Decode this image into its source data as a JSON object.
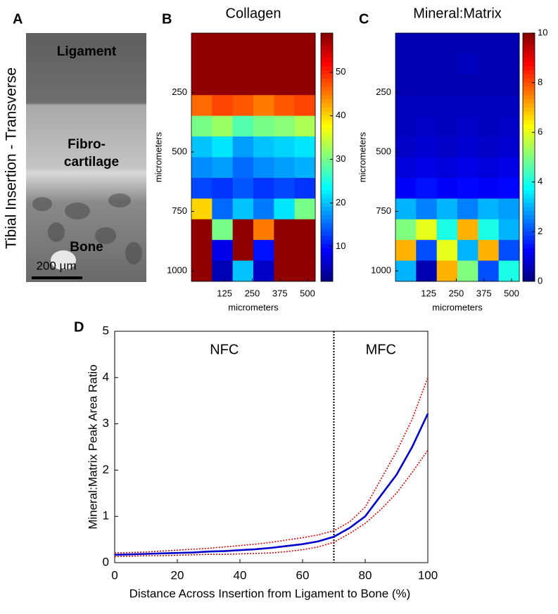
{
  "panel_a": {
    "label": "A",
    "side_label": "Tibial Insertion - Transverse",
    "ligament": "Ligament",
    "fibrocartilage": [
      "Fibro-",
      "cartilage"
    ],
    "bone": "Bone",
    "scale_bar": "200 µm"
  },
  "chart_data": [
    {
      "type": "heatmap",
      "panel_label": "B",
      "title": "Collagen",
      "xlabel": "micrometers",
      "ylabel": "micrometers",
      "xlim": [
        -25,
        535
      ],
      "ylim": [
        0,
        1044
      ],
      "xticks": [
        125,
        250,
        375,
        500
      ],
      "yticks": [
        250,
        500,
        750,
        1000
      ],
      "clim": [
        2,
        59
      ],
      "cticks": [
        10,
        20,
        30,
        40,
        50
      ],
      "colormap": "jet",
      "z": [
        [
          58,
          58,
          58,
          58,
          58,
          58
        ],
        [
          58,
          58,
          58,
          58,
          58,
          58
        ],
        [
          58,
          58,
          58,
          58,
          58,
          58
        ],
        [
          46,
          48,
          47,
          45,
          47,
          48
        ],
        [
          30,
          32,
          28,
          30,
          31,
          33
        ],
        [
          20,
          22,
          18,
          20,
          21,
          22
        ],
        [
          17,
          18,
          15,
          17,
          18,
          19
        ],
        [
          13,
          12,
          14,
          12,
          13,
          12
        ],
        [
          40,
          15,
          20,
          16,
          22,
          30
        ],
        [
          58,
          30,
          58,
          45,
          58,
          58
        ],
        [
          58,
          8,
          58,
          10,
          58,
          58
        ],
        [
          58,
          5,
          20,
          6,
          58,
          58
        ]
      ]
    },
    {
      "type": "heatmap",
      "panel_label": "C",
      "title": "Mineral:Matrix",
      "xlabel": "micrometers",
      "ylabel": "micrometers",
      "xlim": [
        -25,
        535
      ],
      "ylim": [
        0,
        1044
      ],
      "xticks": [
        125,
        250,
        375,
        500
      ],
      "yticks": [
        250,
        500,
        750,
        1000
      ],
      "clim": [
        0,
        10
      ],
      "cticks": [
        0,
        2,
        4,
        6,
        8,
        10
      ],
      "colormap": "jet",
      "z": [
        [
          0.5,
          0.5,
          0.5,
          0.5,
          0.5,
          0.5
        ],
        [
          0.5,
          0.5,
          0.5,
          0.6,
          0.5,
          0.5
        ],
        [
          0.5,
          0.5,
          0.5,
          0.5,
          0.5,
          0.5
        ],
        [
          0.6,
          0.6,
          0.6,
          0.6,
          0.6,
          0.6
        ],
        [
          0.6,
          0.7,
          0.6,
          0.7,
          0.6,
          0.7
        ],
        [
          0.7,
          0.8,
          0.7,
          0.8,
          0.7,
          0.8
        ],
        [
          0.9,
          1,
          0.9,
          1,
          0.9,
          1
        ],
        [
          1.2,
          1.4,
          1.2,
          1.3,
          1.2,
          1.3
        ],
        [
          3,
          2.5,
          3,
          2.5,
          3,
          2.8
        ],
        [
          5,
          6,
          4,
          7,
          4,
          3
        ],
        [
          7,
          2,
          6,
          3,
          7,
          2
        ],
        [
          3,
          0.5,
          7,
          5,
          2,
          4
        ]
      ]
    },
    {
      "type": "line",
      "panel_label": "D",
      "xlabel": "Distance Across Insertion from Ligament to Bone (%)",
      "ylabel": "Mineral:Matrix Peak Area Ratio",
      "xlim": [
        0,
        100
      ],
      "ylim": [
        0,
        5
      ],
      "xticks": [
        0,
        20,
        40,
        60,
        80,
        100
      ],
      "yticks": [
        0,
        1,
        2,
        3,
        4,
        5
      ],
      "divider_x": 70,
      "region_labels": [
        "NFC",
        "MFC"
      ],
      "x": [
        0,
        5,
        10,
        15,
        20,
        25,
        30,
        35,
        40,
        45,
        50,
        55,
        60,
        65,
        70,
        75,
        80,
        85,
        90,
        95,
        100
      ],
      "series": [
        {
          "color": "#0000cc",
          "linestyle": "solid",
          "values": [
            0.17,
            0.18,
            0.19,
            0.2,
            0.21,
            0.22,
            0.24,
            0.25,
            0.27,
            0.29,
            0.32,
            0.36,
            0.4,
            0.46,
            0.56,
            0.75,
            1.0,
            1.45,
            1.9,
            2.5,
            3.22
          ]
        },
        {
          "color": "#dd0000",
          "linestyle": "dotted",
          "values": [
            0.21,
            0.22,
            0.23,
            0.25,
            0.27,
            0.29,
            0.31,
            0.34,
            0.37,
            0.4,
            0.44,
            0.49,
            0.54,
            0.6,
            0.69,
            0.88,
            1.2,
            1.8,
            2.4,
            3.1,
            4.0
          ]
        },
        {
          "color": "#dd0000",
          "linestyle": "dotted",
          "values": [
            0.13,
            0.14,
            0.15,
            0.15,
            0.16,
            0.17,
            0.18,
            0.18,
            0.19,
            0.2,
            0.21,
            0.24,
            0.28,
            0.34,
            0.44,
            0.63,
            0.85,
            1.15,
            1.5,
            1.95,
            2.43
          ]
        }
      ]
    }
  ]
}
